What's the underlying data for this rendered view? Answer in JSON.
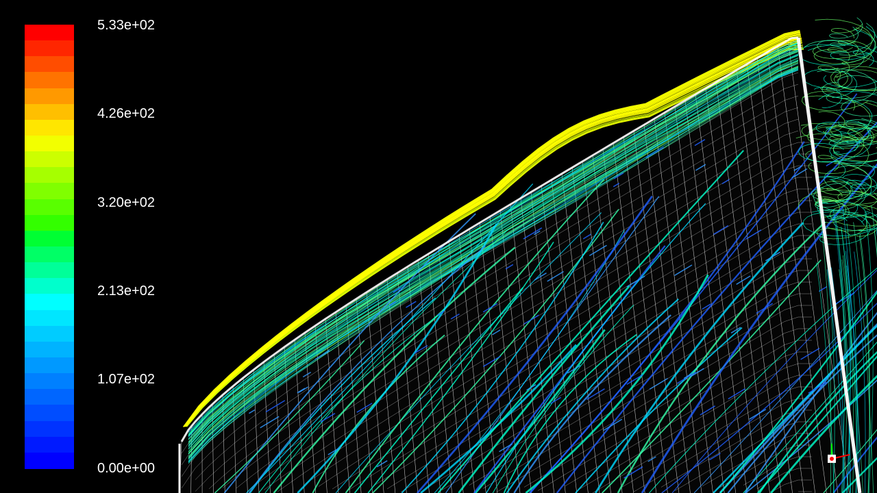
{
  "colorbar": {
    "labels": [
      "5.33e+02",
      "4.26e+02",
      "3.20e+02",
      "2.13e+02",
      "1.07e+02",
      "0.00e+00"
    ],
    "colors": [
      "#ff0000",
      "#ff2600",
      "#ff4d00",
      "#ff7300",
      "#ff9900",
      "#ffbf00",
      "#ffe600",
      "#f2ff00",
      "#ccff00",
      "#a6ff00",
      "#80ff00",
      "#59ff00",
      "#33ff00",
      "#00ff33",
      "#00ff66",
      "#00ff99",
      "#00ffcc",
      "#00ffff",
      "#00e6ff",
      "#00ccff",
      "#00b3ff",
      "#0099ff",
      "#0080ff",
      "#0066ff",
      "#004dff",
      "#0033ff",
      "#001aff",
      "#0000ff"
    ]
  },
  "scene": {
    "background": "#000000",
    "mesh_color": "#ffffff",
    "streamline_colors": [
      "#ffff00",
      "#d4ff00",
      "#66ff66",
      "#33ffaa",
      "#00ffcc",
      "#00d9ff",
      "#3399ff",
      "#1f5fff"
    ]
  },
  "axis_triad": {
    "icon": "axis-triad-icon",
    "colors": [
      "#ff0000",
      "#00ff00",
      "#0000ff"
    ]
  }
}
